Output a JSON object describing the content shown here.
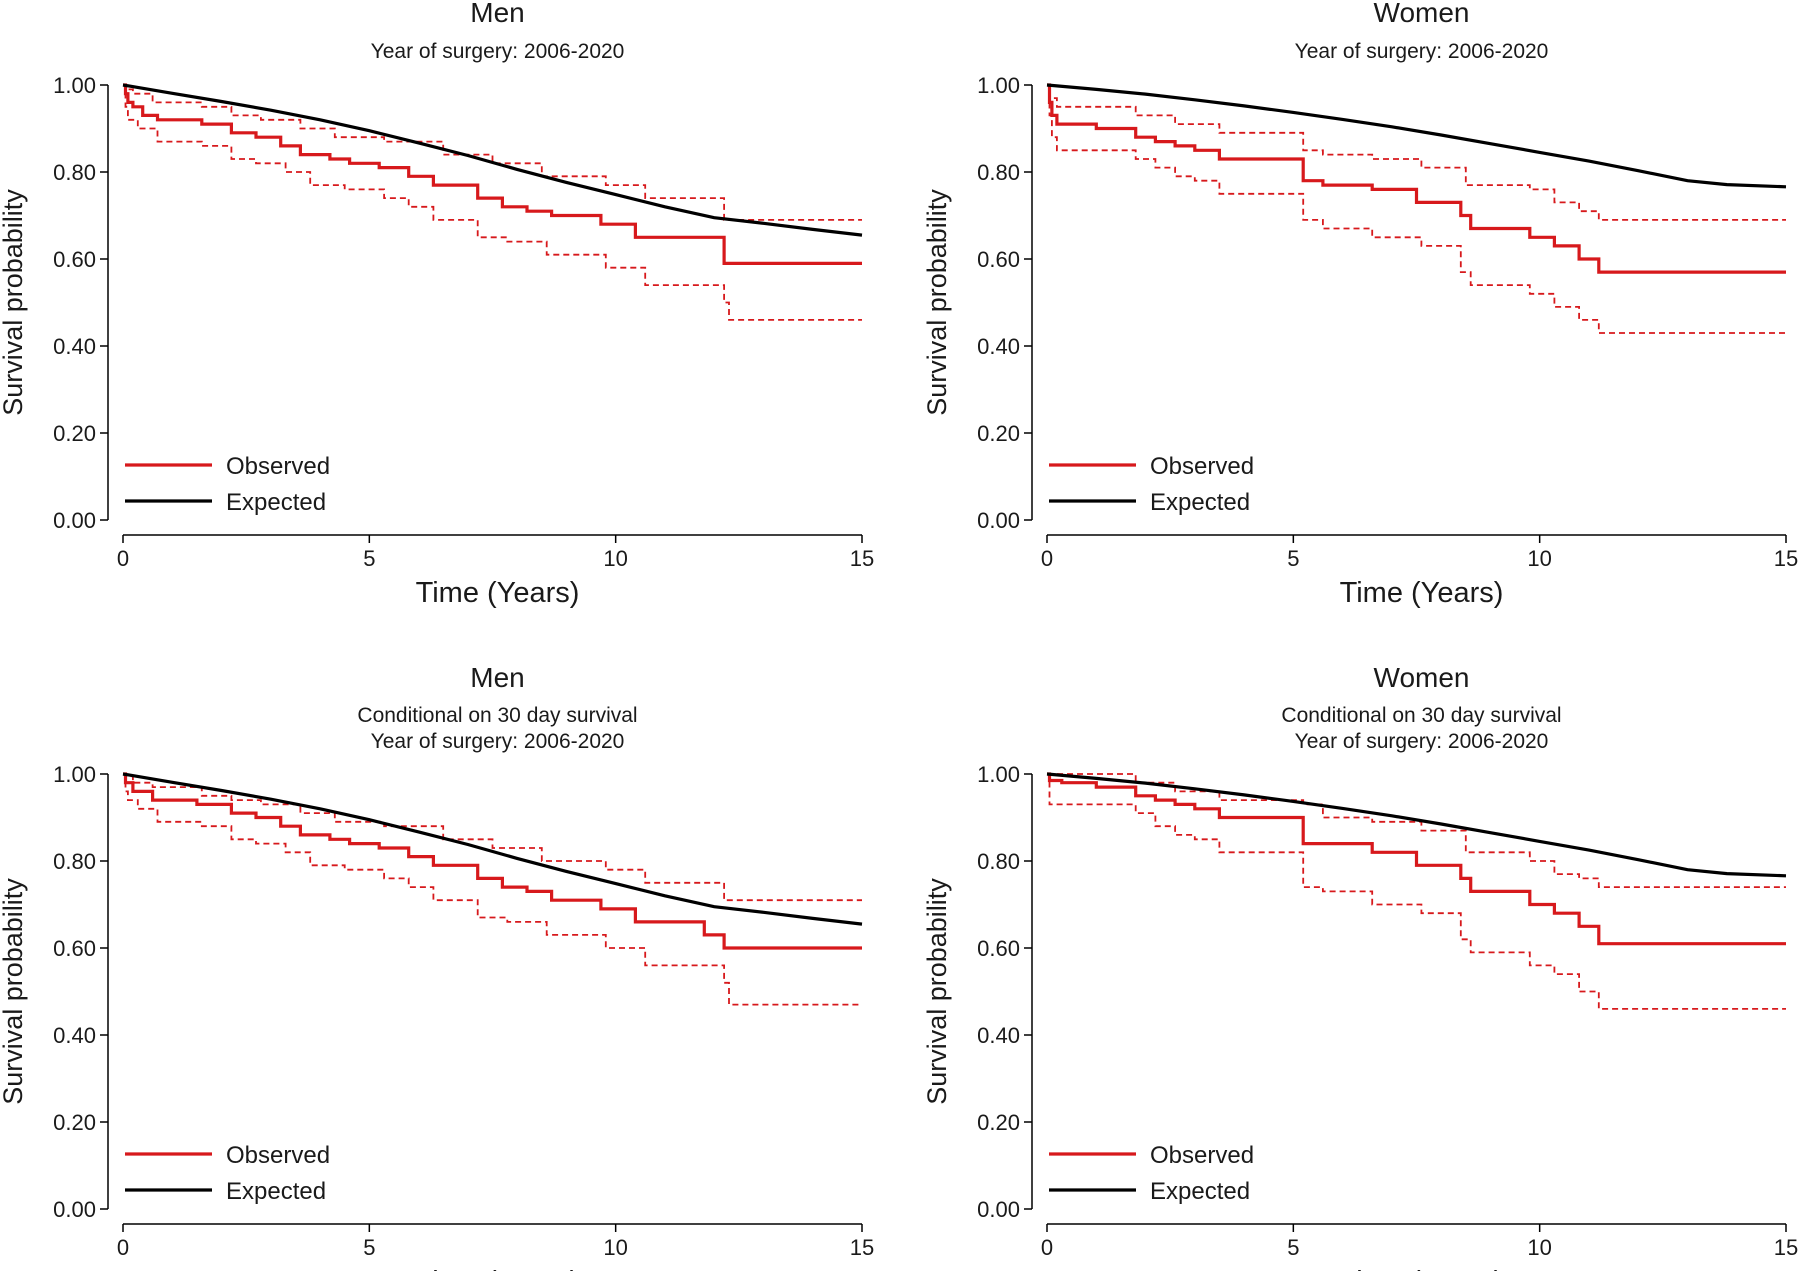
{
  "colors": {
    "observed": "#d7191c",
    "expected": "#000000"
  },
  "chart_data": [
    {
      "type": "line",
      "title": "Men",
      "subtitle_lines": [
        "Year of surgery: 2006-2020"
      ],
      "xlabel": "Time (Years)",
      "ylabel": "Survival probability",
      "xlim": [
        0,
        15
      ],
      "ylim": [
        0,
        1
      ],
      "x_ticks": [
        "0",
        "5",
        "10",
        "15"
      ],
      "y_ticks": [
        "0.00",
        "0.20",
        "0.40",
        "0.60",
        "0.80",
        "1.00"
      ],
      "grid": false,
      "legend_position": "bottom-left",
      "legend": [
        "Observed",
        "Expected"
      ],
      "series": [
        {
          "name": "Observed",
          "style": "step",
          "color": "observed",
          "x": [
            0,
            0.05,
            0.1,
            0.2,
            0.4,
            0.7,
            1.6,
            2.2,
            2.7,
            3.2,
            3.6,
            4.2,
            4.6,
            5.2,
            5.8,
            6.3,
            7.2,
            7.7,
            8.2,
            8.7,
            9.7,
            10.4,
            12.2,
            15
          ],
          "y": [
            1.0,
            0.98,
            0.96,
            0.95,
            0.93,
            0.92,
            0.91,
            0.89,
            0.88,
            0.86,
            0.84,
            0.83,
            0.82,
            0.81,
            0.79,
            0.77,
            0.74,
            0.72,
            0.71,
            0.7,
            0.68,
            0.65,
            0.59,
            0.59
          ]
        },
        {
          "name": "Observed upper 95% CI",
          "style": "step-dashed",
          "color": "observed",
          "x": [
            0,
            0.05,
            0.2,
            0.6,
            1.6,
            2.2,
            2.8,
            3.6,
            4.3,
            5.3,
            6.5,
            7.5,
            8.5,
            9.8,
            10.6,
            12.2,
            15
          ],
          "y": [
            1.0,
            0.99,
            0.98,
            0.96,
            0.95,
            0.93,
            0.92,
            0.9,
            0.88,
            0.87,
            0.84,
            0.82,
            0.79,
            0.77,
            0.74,
            0.69,
            0.69
          ]
        },
        {
          "name": "Observed lower 95% CI",
          "style": "step-dashed",
          "color": "observed",
          "x": [
            0,
            0.05,
            0.1,
            0.3,
            0.7,
            1.6,
            2.2,
            2.7,
            3.3,
            3.8,
            4.5,
            5.3,
            5.8,
            6.3,
            7.2,
            7.8,
            8.6,
            9.8,
            10.6,
            12.2,
            12.3,
            15
          ],
          "y": [
            1.0,
            0.95,
            0.92,
            0.9,
            0.87,
            0.86,
            0.83,
            0.82,
            0.8,
            0.77,
            0.76,
            0.74,
            0.72,
            0.69,
            0.65,
            0.64,
            0.61,
            0.58,
            0.54,
            0.5,
            0.46,
            0.46
          ]
        },
        {
          "name": "Expected",
          "style": "line",
          "color": "expected",
          "x": [
            0,
            1,
            2,
            3,
            4,
            5,
            6,
            7,
            8,
            9,
            10,
            11,
            12,
            13,
            14,
            15
          ],
          "y": [
            1.0,
            0.981,
            0.962,
            0.942,
            0.92,
            0.895,
            0.867,
            0.838,
            0.806,
            0.776,
            0.748,
            0.72,
            0.695,
            0.682,
            0.668,
            0.655
          ]
        }
      ]
    },
    {
      "type": "line",
      "title": "Women",
      "subtitle_lines": [
        "Year of surgery: 2006-2020"
      ],
      "xlabel": "Time (Years)",
      "ylabel": "Survival probability",
      "xlim": [
        0,
        15
      ],
      "ylim": [
        0,
        1
      ],
      "x_ticks": [
        "0",
        "5",
        "10",
        "15"
      ],
      "y_ticks": [
        "0.00",
        "0.20",
        "0.40",
        "0.60",
        "0.80",
        "1.00"
      ],
      "grid": false,
      "legend_position": "bottom-left",
      "legend": [
        "Observed",
        "Expected"
      ],
      "series": [
        {
          "name": "Observed",
          "style": "step",
          "color": "observed",
          "x": [
            0,
            0.05,
            0.1,
            0.2,
            1.0,
            1.8,
            2.2,
            2.6,
            3.0,
            3.5,
            5.2,
            5.6,
            6.6,
            7.5,
            8.4,
            8.6,
            9.8,
            10.3,
            10.8,
            11.2,
            15
          ],
          "y": [
            1.0,
            0.96,
            0.93,
            0.91,
            0.9,
            0.88,
            0.87,
            0.86,
            0.85,
            0.83,
            0.78,
            0.77,
            0.76,
            0.73,
            0.7,
            0.67,
            0.65,
            0.63,
            0.6,
            0.57,
            0.57
          ]
        },
        {
          "name": "Observed upper 95% CI",
          "style": "step-dashed",
          "color": "observed",
          "x": [
            0,
            0.05,
            0.2,
            1.8,
            2.6,
            3.5,
            5.2,
            5.6,
            6.6,
            7.6,
            8.5,
            9.8,
            10.3,
            10.8,
            11.2,
            15
          ],
          "y": [
            1.0,
            0.97,
            0.95,
            0.93,
            0.91,
            0.89,
            0.85,
            0.84,
            0.83,
            0.81,
            0.77,
            0.76,
            0.73,
            0.71,
            0.69,
            0.69
          ]
        },
        {
          "name": "Observed lower 95% CI",
          "style": "step-dashed",
          "color": "observed",
          "x": [
            0,
            0.05,
            0.1,
            0.2,
            1.8,
            2.2,
            2.6,
            3.0,
            3.5,
            5.2,
            5.6,
            6.6,
            7.6,
            8.4,
            8.6,
            9.8,
            10.3,
            10.8,
            11.2,
            15
          ],
          "y": [
            1.0,
            0.93,
            0.88,
            0.85,
            0.83,
            0.81,
            0.79,
            0.78,
            0.75,
            0.69,
            0.67,
            0.65,
            0.63,
            0.57,
            0.54,
            0.52,
            0.49,
            0.46,
            0.43,
            0.43
          ]
        },
        {
          "name": "Expected",
          "style": "line",
          "color": "expected",
          "x": [
            0,
            1,
            2,
            3,
            4,
            5,
            6,
            7,
            8,
            9,
            10,
            11,
            12,
            13,
            13.8,
            15
          ],
          "y": [
            1.0,
            0.99,
            0.979,
            0.966,
            0.952,
            0.937,
            0.921,
            0.904,
            0.885,
            0.865,
            0.845,
            0.825,
            0.803,
            0.78,
            0.771,
            0.766
          ]
        }
      ]
    },
    {
      "type": "line",
      "title": "Men",
      "subtitle_lines": [
        "Conditional on 30 day survival",
        "Year of surgery: 2006-2020"
      ],
      "xlabel": "Time (Years)",
      "ylabel": "Survival probability",
      "xlim": [
        0,
        15
      ],
      "ylim": [
        0,
        1
      ],
      "x_ticks": [
        "0",
        "5",
        "10",
        "15"
      ],
      "y_ticks": [
        "0.00",
        "0.20",
        "0.40",
        "0.60",
        "0.80",
        "1.00"
      ],
      "grid": false,
      "legend_position": "bottom-left",
      "legend": [
        "Observed",
        "Expected"
      ],
      "series": [
        {
          "name": "Observed",
          "style": "step",
          "color": "observed",
          "x": [
            0,
            0.05,
            0.2,
            0.6,
            1.5,
            2.2,
            2.7,
            3.2,
            3.6,
            4.2,
            4.6,
            5.2,
            5.8,
            6.3,
            7.2,
            7.7,
            8.2,
            8.7,
            9.7,
            10.4,
            11.8,
            12.2,
            15
          ],
          "y": [
            1.0,
            0.98,
            0.96,
            0.94,
            0.93,
            0.91,
            0.9,
            0.88,
            0.86,
            0.85,
            0.84,
            0.83,
            0.81,
            0.79,
            0.76,
            0.74,
            0.73,
            0.71,
            0.69,
            0.66,
            0.63,
            0.6,
            0.6
          ]
        },
        {
          "name": "Observed upper 95% CI",
          "style": "step-dashed",
          "color": "observed",
          "x": [
            0,
            0.05,
            0.2,
            0.6,
            1.6,
            2.2,
            2.8,
            3.6,
            4.3,
            5.3,
            6.5,
            7.5,
            8.5,
            9.8,
            10.6,
            12.2,
            15
          ],
          "y": [
            1.0,
            0.995,
            0.98,
            0.97,
            0.95,
            0.94,
            0.93,
            0.91,
            0.89,
            0.88,
            0.85,
            0.83,
            0.8,
            0.78,
            0.75,
            0.71,
            0.71
          ]
        },
        {
          "name": "Observed lower 95% CI",
          "style": "step-dashed",
          "color": "observed",
          "x": [
            0,
            0.05,
            0.1,
            0.3,
            0.7,
            1.6,
            2.2,
            2.7,
            3.3,
            3.8,
            4.5,
            5.3,
            5.8,
            6.3,
            7.2,
            7.8,
            8.6,
            9.8,
            10.6,
            12.2,
            12.3,
            15
          ],
          "y": [
            1.0,
            0.96,
            0.94,
            0.92,
            0.89,
            0.88,
            0.85,
            0.84,
            0.82,
            0.79,
            0.78,
            0.76,
            0.74,
            0.71,
            0.67,
            0.66,
            0.63,
            0.6,
            0.56,
            0.52,
            0.47,
            0.47
          ]
        },
        {
          "name": "Expected",
          "style": "line",
          "color": "expected",
          "x": [
            0,
            1,
            2,
            3,
            4,
            5,
            6,
            7,
            8,
            9,
            10,
            11,
            12,
            13,
            14,
            15
          ],
          "y": [
            1.0,
            0.981,
            0.962,
            0.942,
            0.92,
            0.895,
            0.867,
            0.838,
            0.806,
            0.776,
            0.748,
            0.72,
            0.695,
            0.682,
            0.668,
            0.655
          ]
        }
      ]
    },
    {
      "type": "line",
      "title": "Women",
      "subtitle_lines": [
        "Conditional on 30 day survival",
        "Year of surgery: 2006-2020"
      ],
      "xlabel": "Time (Years)",
      "ylabel": "Survival probability",
      "xlim": [
        0,
        15
      ],
      "ylim": [
        0,
        1
      ],
      "x_ticks": [
        "0",
        "5",
        "10",
        "15"
      ],
      "y_ticks": [
        "0.00",
        "0.20",
        "0.40",
        "0.60",
        "0.80",
        "1.00"
      ],
      "grid": false,
      "legend_position": "bottom-left",
      "legend": [
        "Observed",
        "Expected"
      ],
      "series": [
        {
          "name": "Observed",
          "style": "step",
          "color": "observed",
          "x": [
            0,
            0.05,
            0.3,
            1.0,
            1.8,
            2.2,
            2.6,
            3.0,
            3.5,
            5.2,
            5.6,
            6.6,
            7.5,
            8.4,
            8.6,
            9.8,
            10.3,
            10.8,
            11.2,
            15
          ],
          "y": [
            1.0,
            0.985,
            0.98,
            0.97,
            0.95,
            0.94,
            0.93,
            0.92,
            0.9,
            0.84,
            0.84,
            0.82,
            0.79,
            0.76,
            0.73,
            0.7,
            0.68,
            0.65,
            0.61,
            0.61
          ]
        },
        {
          "name": "Observed upper 95% CI",
          "style": "step-dashed",
          "color": "observed",
          "x": [
            0,
            1.8,
            2.6,
            3.5,
            5.2,
            5.6,
            6.6,
            7.6,
            8.5,
            9.8,
            10.3,
            10.8,
            11.2,
            15
          ],
          "y": [
            1.0,
            0.98,
            0.96,
            0.94,
            0.93,
            0.9,
            0.89,
            0.87,
            0.82,
            0.8,
            0.77,
            0.76,
            0.74,
            0.74
          ]
        },
        {
          "name": "Observed lower 95% CI",
          "style": "step-dashed",
          "color": "observed",
          "x": [
            0,
            0.05,
            1.8,
            2.2,
            2.6,
            3.0,
            3.5,
            5.2,
            5.6,
            6.6,
            7.6,
            8.4,
            8.6,
            9.8,
            10.3,
            10.8,
            11.2,
            15
          ],
          "y": [
            1.0,
            0.93,
            0.91,
            0.88,
            0.86,
            0.85,
            0.82,
            0.74,
            0.73,
            0.7,
            0.68,
            0.62,
            0.59,
            0.56,
            0.54,
            0.5,
            0.46,
            0.46
          ]
        },
        {
          "name": "Expected",
          "style": "line",
          "color": "expected",
          "x": [
            0,
            1,
            2,
            3,
            4,
            5,
            6,
            7,
            8,
            9,
            10,
            11,
            12,
            13,
            13.8,
            15
          ],
          "y": [
            1.0,
            0.99,
            0.979,
            0.966,
            0.952,
            0.937,
            0.921,
            0.904,
            0.885,
            0.865,
            0.845,
            0.825,
            0.803,
            0.78,
            0.771,
            0.766
          ]
        }
      ]
    }
  ]
}
